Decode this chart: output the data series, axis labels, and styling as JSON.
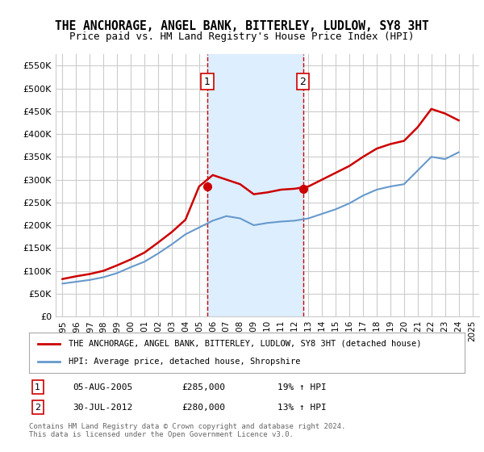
{
  "title": "THE ANCHORAGE, ANGEL BANK, BITTERLEY, LUDLOW, SY8 3HT",
  "subtitle": "Price paid vs. HM Land Registry's House Price Index (HPI)",
  "footnote": "Contains HM Land Registry data © Crown copyright and database right 2024.\nThis data is licensed under the Open Government Licence v3.0.",
  "legend_label_red": "THE ANCHORAGE, ANGEL BANK, BITTERLEY, LUDLOW, SY8 3HT (detached house)",
  "legend_label_blue": "HPI: Average price, detached house, Shropshire",
  "marker1_date": "05-AUG-2005",
  "marker1_price": 285000,
  "marker1_pct": "19% ↑ HPI",
  "marker2_date": "30-JUL-2012",
  "marker2_price": 280000,
  "marker2_pct": "13% ↑ HPI",
  "red_color": "#cc0000",
  "blue_color": "#6699cc",
  "shaded_color": "#ddeeff",
  "marker_box_color": "#cc0000",
  "grid_color": "#cccccc",
  "bg_color": "#ffffff",
  "ylim": [
    0,
    575000
  ],
  "yticks": [
    0,
    50000,
    100000,
    150000,
    200000,
    250000,
    300000,
    350000,
    400000,
    450000,
    500000,
    550000
  ],
  "ytick_labels": [
    "£0",
    "£50K",
    "£100K",
    "£150K",
    "£200K",
    "£250K",
    "£300K",
    "£350K",
    "£400K",
    "£450K",
    "£500K",
    "£550K"
  ],
  "xtick_years": [
    1995,
    1996,
    1997,
    1998,
    1999,
    2000,
    2001,
    2002,
    2003,
    2004,
    2005,
    2006,
    2007,
    2008,
    2009,
    2010,
    2011,
    2012,
    2013,
    2014,
    2015,
    2016,
    2017,
    2018,
    2019,
    2020,
    2021,
    2022,
    2023,
    2024,
    2025
  ],
  "hpi_years": [
    1995,
    1996,
    1997,
    1998,
    1999,
    2000,
    2001,
    2002,
    2003,
    2004,
    2005,
    2006,
    2007,
    2008,
    2009,
    2010,
    2011,
    2012,
    2013,
    2014,
    2015,
    2016,
    2017,
    2018,
    2019,
    2020,
    2021,
    2022,
    2023,
    2024
  ],
  "hpi_values": [
    72000,
    76000,
    80000,
    86000,
    95000,
    108000,
    120000,
    138000,
    158000,
    180000,
    195000,
    210000,
    220000,
    215000,
    200000,
    205000,
    208000,
    210000,
    215000,
    225000,
    235000,
    248000,
    265000,
    278000,
    285000,
    290000,
    320000,
    350000,
    345000,
    360000
  ],
  "red_years": [
    1995,
    1996,
    1997,
    1998,
    1999,
    2000,
    2001,
    2002,
    2003,
    2004,
    2005,
    2006,
    2007,
    2008,
    2009,
    2010,
    2011,
    2012,
    2013,
    2014,
    2015,
    2016,
    2017,
    2018,
    2019,
    2020,
    2021,
    2022,
    2023,
    2024
  ],
  "red_values": [
    82000,
    88000,
    93000,
    100000,
    112000,
    125000,
    140000,
    162000,
    185000,
    212000,
    285000,
    310000,
    300000,
    290000,
    268000,
    272000,
    278000,
    280000,
    285000,
    300000,
    315000,
    330000,
    350000,
    368000,
    378000,
    385000,
    415000,
    455000,
    445000,
    430000
  ],
  "marker1_x": 2005.6,
  "marker1_y": 285000,
  "marker2_x": 2012.6,
  "marker2_y": 280000,
  "shaded_x1": 2005.6,
  "shaded_x2": 2012.6
}
